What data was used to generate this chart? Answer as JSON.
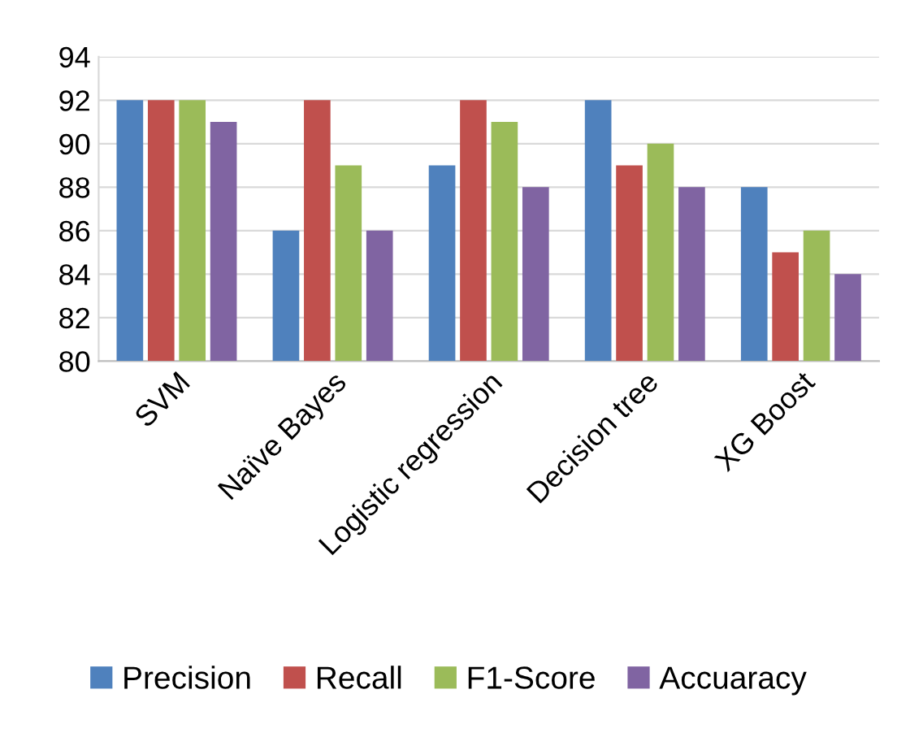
{
  "chart_data": {
    "type": "bar",
    "categories": [
      "SVM",
      "Naïve Bayes",
      "Logistic regression",
      "Decision tree",
      "XG Boost"
    ],
    "series": [
      {
        "name": "Precision",
        "color": "#4f81bd",
        "values": [
          92,
          86,
          89,
          92,
          88
        ]
      },
      {
        "name": "Recall",
        "color": "#c0504d",
        "values": [
          92,
          92,
          92,
          89,
          85
        ]
      },
      {
        "name": "F1-Score",
        "color": "#9bbb59",
        "values": [
          92,
          89,
          91,
          90,
          86
        ]
      },
      {
        "name": "Accuaracy",
        "color": "#8064a2",
        "values": [
          91,
          86,
          88,
          88,
          84
        ]
      }
    ],
    "ylim": [
      80,
      94
    ],
    "yticks": [
      80,
      82,
      84,
      86,
      88,
      90,
      92,
      94
    ],
    "grid": "y",
    "legend": "bottom"
  }
}
